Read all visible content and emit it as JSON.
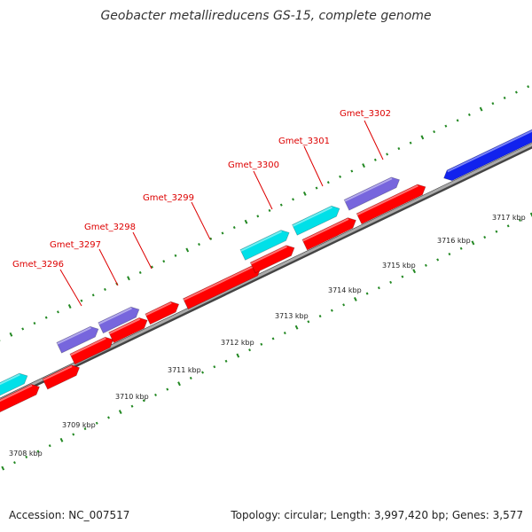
{
  "title": "Geobacter metallireducens GS-15, complete genome",
  "footer": {
    "accession": "Accession: NC_007517",
    "stats": "Topology: circular; Length: 3,997,420 bp; Genes: 3,577"
  },
  "colors": {
    "backbone": "#888888",
    "tick": "#228822",
    "gene_label": "#dd0000",
    "gene_red": "#ff0000",
    "gene_cyan": "#00e0e8",
    "gene_purple": "#7766dd",
    "gene_blue": "#1122ee"
  },
  "diagram": {
    "kbp_labels": [
      {
        "pos": 3708,
        "text": "3708 kbp"
      },
      {
        "pos": 3709,
        "text": "3709 kbp"
      },
      {
        "pos": 3710,
        "text": "3710 kbp"
      },
      {
        "pos": 3711,
        "text": "3711 kbp"
      },
      {
        "pos": 3712,
        "text": "3712 kbp"
      },
      {
        "pos": 3713,
        "text": "3713 kbp"
      },
      {
        "pos": 3714,
        "text": "3714 kbp"
      },
      {
        "pos": 3715,
        "text": "3715 kbp"
      },
      {
        "pos": 3716,
        "text": "3716 kbp"
      },
      {
        "pos": 3717,
        "text": "3717 kbp"
      }
    ],
    "gene_labels": [
      "Gmet_3296",
      "Gmet_3297",
      "Gmet_3298",
      "Gmet_3299",
      "Gmet_3300",
      "Gmet_3301",
      "Gmet_3302"
    ]
  }
}
